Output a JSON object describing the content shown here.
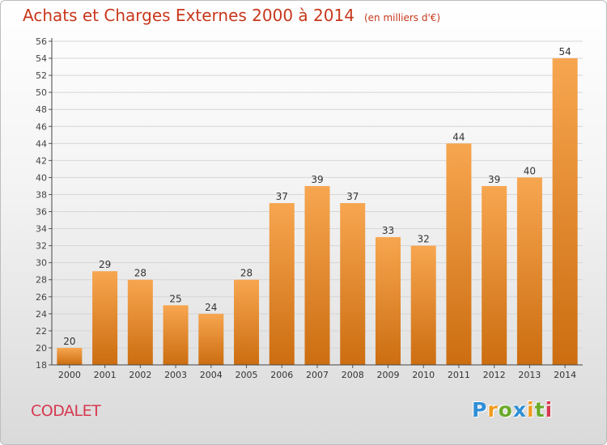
{
  "title": "Achats et Charges Externes 2000 à 2014",
  "subtitle": "(en milliers d'€)",
  "commune": "CODALET",
  "logo": {
    "letters": [
      "P",
      "r",
      "o",
      "x",
      "i",
      "t",
      "i"
    ],
    "colors": [
      "#2f8fd6",
      "#f29b1d",
      "#6aaa2a",
      "#2f8fd6",
      "#f29b1d",
      "#6aaa2a",
      "#d6384f"
    ]
  },
  "colors": {
    "title": "#c8371c",
    "bar_light": "#f7a650",
    "bar_dark": "#cc6d10",
    "grid": "#d6d6d6"
  },
  "chart_data": {
    "type": "bar",
    "title": "Achats et Charges Externes 2000 à 2014",
    "subtitle": "(en milliers d'€)",
    "categories": [
      "2000",
      "2001",
      "2002",
      "2003",
      "2004",
      "2005",
      "2006",
      "2007",
      "2008",
      "2009",
      "2010",
      "2011",
      "2012",
      "2013",
      "2014"
    ],
    "values": [
      20,
      29,
      28,
      25,
      24,
      28,
      37,
      39,
      37,
      33,
      32,
      44,
      39,
      40,
      54
    ],
    "ylim": [
      18,
      56
    ],
    "ytick_step": 2,
    "xlabel": "",
    "ylabel": "",
    "grid": true
  }
}
